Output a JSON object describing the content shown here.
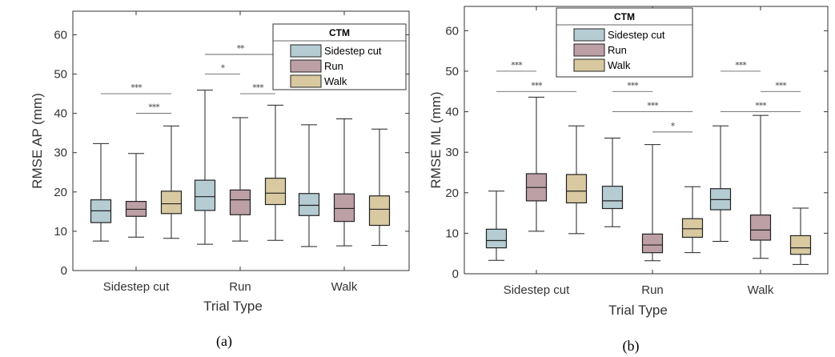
{
  "chart_data": [
    {
      "type": "box",
      "panel_label": "(a)",
      "ylabel": "RMSE AP  (mm)",
      "xlabel": "Trial Type",
      "ylim": [
        0,
        66
      ],
      "yticks": [
        0,
        10,
        20,
        30,
        40,
        50,
        60
      ],
      "categories": [
        "Sidestep cut",
        "Run",
        "Walk"
      ],
      "grid": false,
      "legend": {
        "title": "CTM",
        "position": "top-right",
        "entries": [
          "Sidestep cut",
          "Run",
          "Walk"
        ]
      },
      "series": [
        {
          "name": "Sidestep cut",
          "color": "#b5ccd3",
          "boxes": [
            {
              "min": 7.5,
              "q1": 12.2,
              "median": 15.2,
              "q3": 18.0,
              "max": 32.3
            },
            {
              "min": 6.7,
              "q1": 15.3,
              "median": 18.8,
              "q3": 23.0,
              "max": 45.9
            },
            {
              "min": 6.1,
              "q1": 14.0,
              "median": 16.6,
              "q3": 19.6,
              "max": 37.1
            }
          ]
        },
        {
          "name": "Run",
          "color": "#bd9fa6",
          "boxes": [
            {
              "min": 8.5,
              "q1": 13.8,
              "median": 15.6,
              "q3": 17.6,
              "max": 29.8
            },
            {
              "min": 7.5,
              "q1": 14.2,
              "median": 18.0,
              "q3": 20.5,
              "max": 38.9
            },
            {
              "min": 6.3,
              "q1": 12.5,
              "median": 15.8,
              "q3": 19.5,
              "max": 38.6
            }
          ]
        },
        {
          "name": "Walk",
          "color": "#d9c9a0",
          "boxes": [
            {
              "min": 8.2,
              "q1": 14.5,
              "median": 17.0,
              "q3": 20.2,
              "max": 36.8
            },
            {
              "min": 7.7,
              "q1": 16.8,
              "median": 19.7,
              "q3": 23.5,
              "max": 42.1
            },
            {
              "min": 6.4,
              "q1": 11.5,
              "median": 15.6,
              "q3": 19.0,
              "max": 36.0
            }
          ]
        }
      ],
      "significance": [
        {
          "category": 0,
          "from": 0,
          "to": 2,
          "y": 45.0,
          "label": "***"
        },
        {
          "category": 0,
          "from": 1,
          "to": 2,
          "y": 40.0,
          "label": "***"
        },
        {
          "category": 1,
          "from": 0,
          "to": 2,
          "y": 55.0,
          "label": "**"
        },
        {
          "category": 1,
          "from": 0,
          "to": 1,
          "y": 50.0,
          "label": "*"
        },
        {
          "category": 1,
          "from": 1,
          "to": 2,
          "y": 45.0,
          "label": "***"
        }
      ]
    },
    {
      "type": "box",
      "panel_label": "(b)",
      "ylabel": "RMSE ML  (mm)",
      "xlabel": "Trial Type",
      "ylim": [
        0,
        66
      ],
      "yticks": [
        0,
        10,
        20,
        30,
        40,
        50,
        60
      ],
      "categories": [
        "Sidestep cut",
        "Run",
        "Walk"
      ],
      "grid": false,
      "legend": {
        "title": "CTM",
        "position": "top-center",
        "entries": [
          "Sidestep cut",
          "Run",
          "Walk"
        ]
      },
      "series": [
        {
          "name": "Sidestep cut",
          "color": "#b5ccd3",
          "boxes": [
            {
              "min": 3.3,
              "q1": 6.4,
              "median": 8.2,
              "q3": 11.0,
              "max": 20.4
            },
            {
              "min": 11.6,
              "q1": 16.1,
              "median": 18.0,
              "q3": 21.6,
              "max": 33.5
            },
            {
              "min": 8.0,
              "q1": 15.8,
              "median": 18.3,
              "q3": 21.0,
              "max": 36.5
            }
          ]
        },
        {
          "name": "Run",
          "color": "#bd9fa6",
          "boxes": [
            {
              "min": 10.5,
              "q1": 18.0,
              "median": 21.3,
              "q3": 24.7,
              "max": 43.6
            },
            {
              "min": 3.2,
              "q1": 5.2,
              "median": 7.1,
              "q3": 9.8,
              "max": 31.9
            },
            {
              "min": 3.8,
              "q1": 8.3,
              "median": 10.8,
              "q3": 14.5,
              "max": 39.1
            }
          ]
        },
        {
          "name": "Walk",
          "color": "#d9c9a0",
          "boxes": [
            {
              "min": 9.9,
              "q1": 17.5,
              "median": 20.4,
              "q3": 24.5,
              "max": 36.5
            },
            {
              "min": 5.2,
              "q1": 9.0,
              "median": 11.1,
              "q3": 13.6,
              "max": 21.5
            },
            {
              "min": 2.3,
              "q1": 4.8,
              "median": 6.4,
              "q3": 9.4,
              "max": 16.2
            }
          ]
        }
      ],
      "significance": [
        {
          "category": 0,
          "from": 0,
          "to": 1,
          "y": 50.0,
          "label": "***"
        },
        {
          "category": 0,
          "from": 0,
          "to": 2,
          "y": 45.0,
          "label": "***"
        },
        {
          "category": 1,
          "from": 0,
          "to": 1,
          "y": 45.0,
          "label": "***"
        },
        {
          "category": 1,
          "from": 0,
          "to": 2,
          "y": 40.0,
          "label": "***"
        },
        {
          "category": 1,
          "from": 1,
          "to": 2,
          "y": 35.0,
          "label": "*"
        },
        {
          "category": 2,
          "from": 0,
          "to": 1,
          "y": 50.0,
          "label": "***"
        },
        {
          "category": 2,
          "from": 1,
          "to": 2,
          "y": 45.0,
          "label": "***"
        },
        {
          "category": 2,
          "from": 0,
          "to": 2,
          "y": 40.0,
          "label": "***"
        }
      ]
    }
  ]
}
